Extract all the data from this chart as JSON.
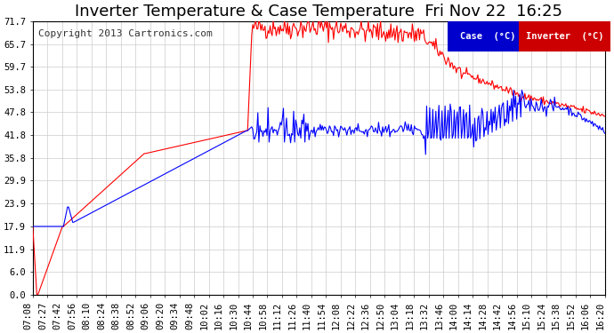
{
  "title": "Inverter Temperature & Case Temperature  Fri Nov 22  16:25",
  "copyright": "Copyright 2013 Cartronics.com",
  "background_color": "#ffffff",
  "plot_bg_color": "#ffffff",
  "grid_color": "#cccccc",
  "yticks": [
    0.0,
    6.0,
    11.9,
    17.9,
    23.9,
    29.9,
    35.8,
    41.8,
    47.8,
    53.8,
    59.7,
    65.7,
    71.7
  ],
  "ylim": [
    0.0,
    71.7
  ],
  "legend_case_label": "Case  (°C)",
  "legend_inverter_label": "Inverter  (°C)",
  "legend_case_color": "#0000ff",
  "legend_case_bg": "#0000cc",
  "legend_inverter_color": "#ff0000",
  "legend_inverter_bg": "#cc0000",
  "case_color": "#0000ff",
  "inverter_color": "#ff0000",
  "title_fontsize": 13,
  "copyright_fontsize": 8,
  "tick_fontsize": 7.5,
  "xtick_rotation": 90
}
